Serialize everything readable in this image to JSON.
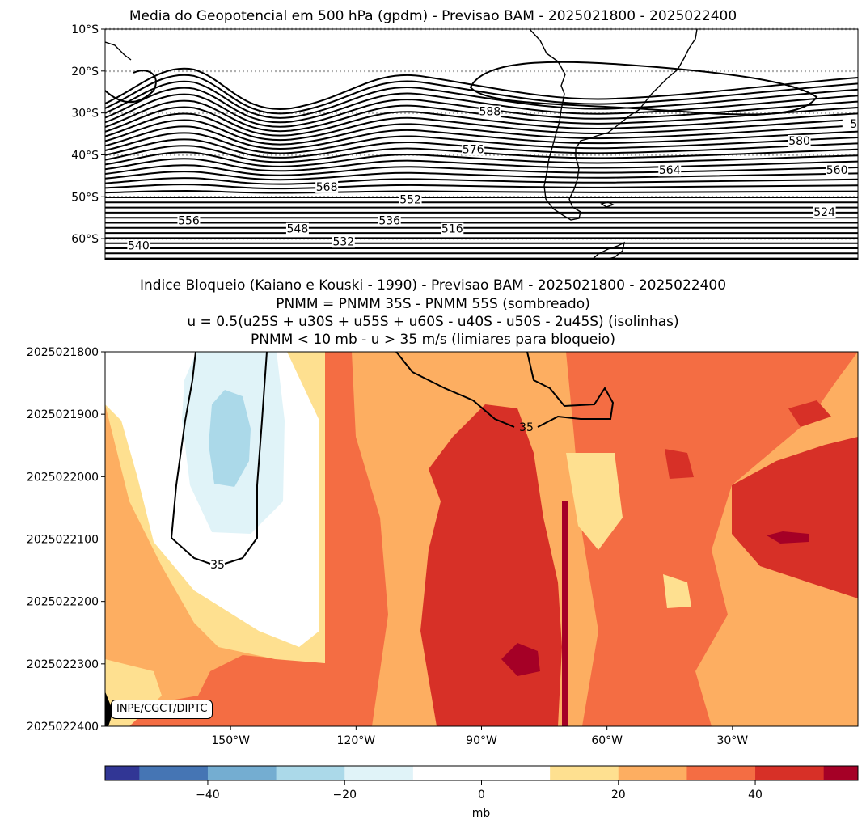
{
  "top_panel": {
    "title": "Media do Geopotencial em 500 hPa (gpdm) - Previsao BAM - 2025021800 - 2025022400"
  },
  "bottom_panel": {
    "title_lines": [
      "Indice Bloqueio (Kaiano e Kouski - 1990) - Previsao BAM - 2025021800 - 2025022400",
      "PNMM = PNMM 35S - PNMM 55S (sombreado)",
      "u = 0.5(u25S + u30S + u55S + u60S - u40S - u50S - 2u45S) (isolinhas)",
      "PNMM < 10 mb - u > 35 m/s (limiares para bloqueio)"
    ],
    "credit": "INPE/CGCT/DIPTC"
  },
  "colorbar": {
    "label": "mb",
    "levels": [
      -55,
      -50,
      -40,
      -30,
      -20,
      -10,
      0,
      10,
      20,
      30,
      40,
      50,
      55
    ],
    "colors": [
      "#313695",
      "#4575b4",
      "#74add1",
      "#abd9e9",
      "#e0f3f8",
      "#ffffff",
      "#ffffff",
      "#fee090",
      "#fdae61",
      "#f46d43",
      "#d73027",
      "#a50026"
    ],
    "tick_values": [
      -40,
      -20,
      0,
      20,
      40
    ],
    "tick_labels": [
      "−40",
      "−20",
      "0",
      "20",
      "40"
    ]
  },
  "chart_data": [
    {
      "type": "contour",
      "title": "Media do Geopotencial em 500 hPa (gpdm) - Previsao BAM - 2025021800 - 2025022400",
      "xlim": [
        -180,
        0
      ],
      "ylim": [
        -65,
        -10
      ],
      "yticks": [
        -10,
        -20,
        -30,
        -40,
        -50,
        -60
      ],
      "ytick_labels": [
        "10°S",
        "20°S",
        "30°S",
        "40°S",
        "50°S",
        "60°S"
      ],
      "gridlines": "dotted gray at 10° latitude",
      "contour_interval_gpdm": 4,
      "contour_labels": [
        {
          "text": "588",
          "lon": -88,
          "lat": -30
        },
        {
          "text": "576",
          "lon": -92,
          "lat": -39
        },
        {
          "text": "580",
          "lon": -14,
          "lat": -37
        },
        {
          "text": "564",
          "lon": -45,
          "lat": -44
        },
        {
          "text": "560",
          "lon": -5,
          "lat": -44
        },
        {
          "text": "524",
          "lon": -8,
          "lat": -54
        },
        {
          "text": "568",
          "lon": -127,
          "lat": -48
        },
        {
          "text": "556",
          "lon": -160,
          "lat": -56
        },
        {
          "text": "552",
          "lon": -107,
          "lat": -51
        },
        {
          "text": "548",
          "lon": -134,
          "lat": -58
        },
        {
          "text": "536",
          "lon": -112,
          "lat": -56
        },
        {
          "text": "532",
          "lon": -123,
          "lat": -61
        },
        {
          "text": "516",
          "lon": -97,
          "lat": -58
        },
        {
          "text": "540",
          "lon": -172,
          "lat": -62
        },
        {
          "text": "5",
          "lon": -1,
          "lat": -33
        }
      ],
      "coastlines": "South America"
    },
    {
      "type": "heatmap",
      "title": "Indice Bloqueio (Kaiano e Kouski - 1990) - Previsao BAM - 2025021800 - 2025022400",
      "xlim": [
        -180,
        0
      ],
      "xticks": [
        -150,
        -120,
        -90,
        -60,
        -30
      ],
      "xtick_labels": [
        "150°W",
        "120°W",
        "90°W",
        "60°W",
        "30°W"
      ],
      "yticks": [
        "2025021800",
        "2025021900",
        "2025022000",
        "2025022100",
        "2025022200",
        "2025022300",
        "2025022400"
      ],
      "shading": "PNMM 35S - PNMM 55S (mb)",
      "isoline": {
        "variable": "u (m/s)",
        "level": 35,
        "labels": [
          {
            "text": "35",
            "lon": -159,
            "time_index": 3.34
          },
          {
            "text": "35",
            "lon": -80.5,
            "time_index": 1.2
          }
        ]
      },
      "regions": [
        {
          "name": "blue core",
          "range_mb": [
            -30,
            -20
          ],
          "lon_center": -156,
          "time_center": 1.2
        },
        {
          "name": "light blue",
          "range_mb": [
            -20,
            -10
          ],
          "lon_center": -155,
          "time_center": 1.3
        },
        {
          "name": "white near zero",
          "range_mb": [
            -10,
            10
          ],
          "lon_center": -150,
          "time_center": 2.5
        },
        {
          "name": "dark red",
          "range_mb": [
            50,
            55
          ],
          "lon_center": -80,
          "time_center": 5.2
        },
        {
          "name": "dark red",
          "range_mb": [
            50,
            55
          ],
          "lon_center": -20,
          "time_center": 2.95
        }
      ]
    }
  ]
}
